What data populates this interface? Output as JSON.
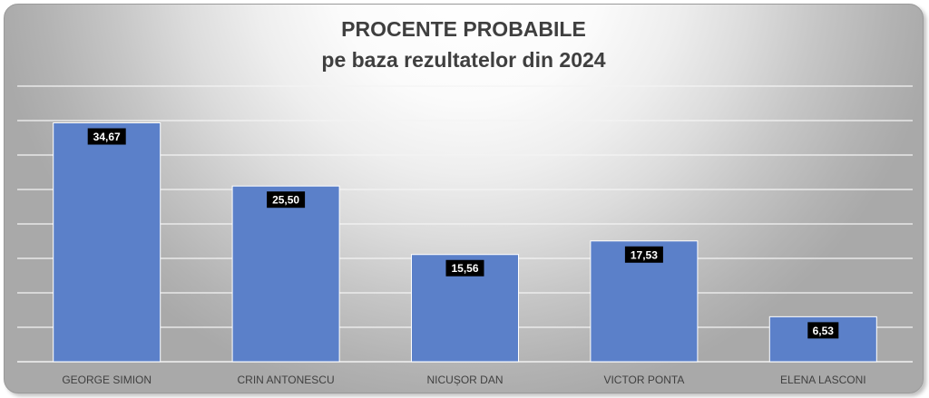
{
  "chart_data": {
    "type": "bar",
    "title": "PROCENTE PROBABILE",
    "subtitle": "pe baza rezultatelor din 2024",
    "categories": [
      "GEORGE SIMION",
      "CRIN ANTONESCU",
      "NICUȘOR DAN",
      "VICTOR PONTA",
      "ELENA LASCONI"
    ],
    "values": [
      34.67,
      25.5,
      15.56,
      17.53,
      6.53
    ],
    "value_labels": [
      "34,67",
      "25,50",
      "15,56",
      "17,53",
      "6,53"
    ],
    "ylim": [
      0,
      40
    ],
    "grid": true,
    "y_tick_labels_visible": false,
    "legend": "none",
    "colors": {
      "bar": "#5b80c9",
      "bar_edge": "#ffffff",
      "label_bg": "#000000",
      "label_text": "#ffffff",
      "grid": "#f4f4f4"
    }
  }
}
